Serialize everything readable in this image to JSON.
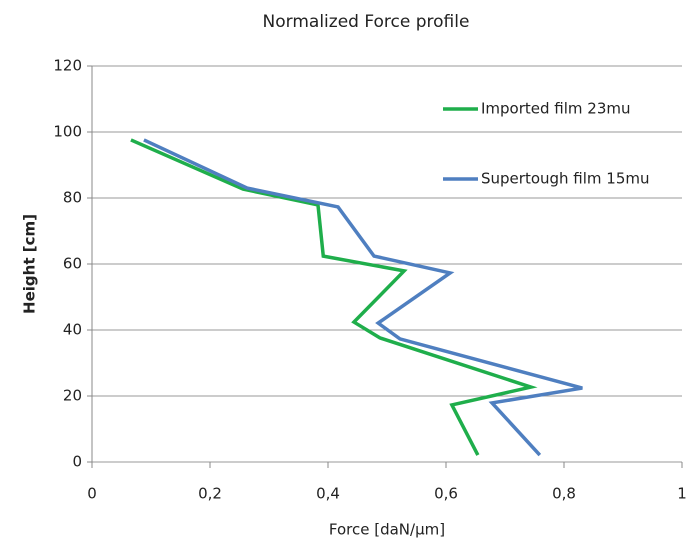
{
  "chart_data": {
    "type": "line",
    "title": "Normalized Force profile",
    "xlabel": "Force [daN/µm]",
    "ylabel": "Height [cm]",
    "xlim": [
      0,
      1
    ],
    "ylim": [
      0,
      120
    ],
    "xticks": [
      0,
      {
        "value": 0.2,
        "label": "0,2"
      },
      {
        "value": 0.4,
        "label": "0,4"
      },
      {
        "value": 0.6,
        "label": "0,6"
      },
      {
        "value": 0.8,
        "label": "0,8"
      },
      1
    ],
    "yticks": [
      0,
      20,
      40,
      60,
      80,
      100,
      120
    ],
    "grid": true,
    "legend": "upper right",
    "series": [
      {
        "name": "Imported film 23mu",
        "color": "#1fae4b",
        "x": [
          0.066,
          0.256,
          0.383,
          0.392,
          0.529,
          0.444,
          0.488,
          0.744,
          0.61,
          0.654
        ],
        "values": [
          97.6,
          82.7,
          77.9,
          62.4,
          57.9,
          42.4,
          37.6,
          22.7,
          17.3,
          2.1
        ]
      },
      {
        "name": "Supertough film 15mu",
        "color": "#4f7fc0",
        "x": [
          0.088,
          0.263,
          0.417,
          0.478,
          0.607,
          0.485,
          0.522,
          0.831,
          0.678,
          0.759
        ],
        "values": [
          97.6,
          83,
          77.3,
          62.4,
          57.3,
          42.1,
          37.3,
          22.4,
          17.9,
          2.1
        ]
      }
    ]
  }
}
